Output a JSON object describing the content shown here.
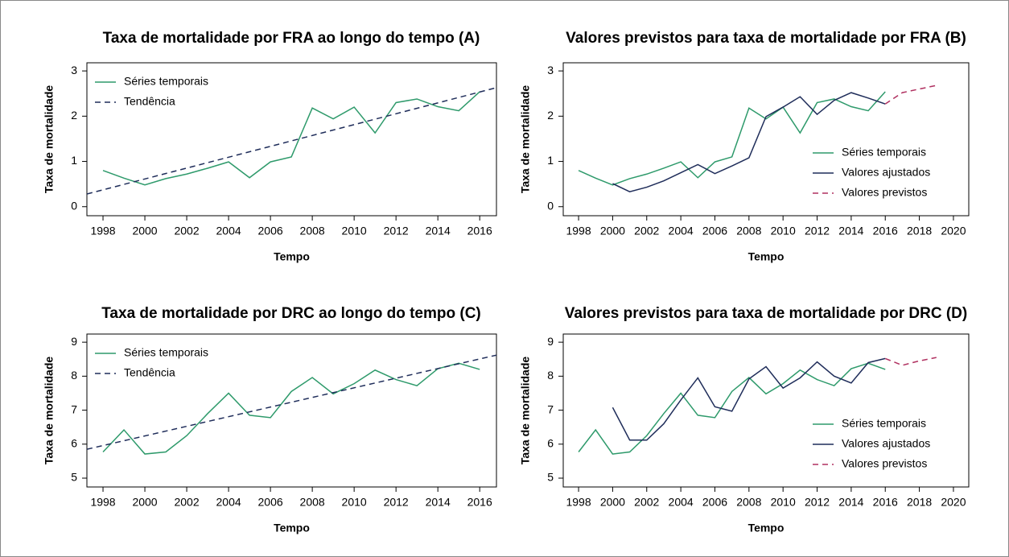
{
  "chart_data": [
    {
      "type": "line",
      "title": "Taxa de mortalidade por FRA ao longo do tempo (A)",
      "xlabel": "Tempo",
      "ylabel": "Taxa de mortalidade",
      "xlim": [
        1997.23,
        2016.8
      ],
      "xticks": [
        1998,
        2000,
        2002,
        2004,
        2006,
        2008,
        2010,
        2012,
        2014,
        2016
      ],
      "ylim": [
        -0.2,
        3.18
      ],
      "yticks": [
        0,
        1,
        2,
        3
      ],
      "legend": "top-left",
      "series": [
        {
          "name": "Séries temporais",
          "color": "#2e9a6b",
          "linestyle": "solid",
          "x": [
            1998,
            1999,
            2000,
            2001,
            2002,
            2003,
            2004,
            2005,
            2006,
            2007,
            2008,
            2009,
            2010,
            2011,
            2012,
            2013,
            2014,
            2015,
            2016
          ],
          "values": [
            0.8,
            0.63,
            0.48,
            0.62,
            0.72,
            0.85,
            0.99,
            0.64,
            0.99,
            1.1,
            2.18,
            1.94,
            2.2,
            1.63,
            2.3,
            2.38,
            2.21,
            2.12,
            2.54
          ]
        },
        {
          "name": "Tendência",
          "color": "#1f2d5a",
          "linestyle": "dashed",
          "x": [
            1997.23,
            2016.8
          ],
          "values": [
            0.28,
            2.63
          ]
        }
      ]
    },
    {
      "type": "line",
      "title": "Valores previstos para taxa de mortalidade por FRA (B)",
      "xlabel": "Tempo",
      "ylabel": "Taxa de mortalidade",
      "xlim": [
        1997.1,
        2020.9
      ],
      "xticks": [
        1998,
        2000,
        2002,
        2004,
        2006,
        2008,
        2010,
        2012,
        2014,
        2016,
        2018,
        2020
      ],
      "ylim": [
        -0.2,
        3.18
      ],
      "yticks": [
        0,
        1,
        2,
        3
      ],
      "legend": "right",
      "series": [
        {
          "name": "Séries temporais",
          "color": "#2e9a6b",
          "linestyle": "solid",
          "x": [
            1998,
            1999,
            2000,
            2001,
            2002,
            2003,
            2004,
            2005,
            2006,
            2007,
            2008,
            2009,
            2010,
            2011,
            2012,
            2013,
            2014,
            2015,
            2016
          ],
          "values": [
            0.8,
            0.63,
            0.48,
            0.62,
            0.72,
            0.85,
            0.99,
            0.64,
            0.99,
            1.1,
            2.18,
            1.94,
            2.2,
            1.63,
            2.3,
            2.38,
            2.21,
            2.12,
            2.54
          ]
        },
        {
          "name": "Valores ajustados",
          "color": "#1f2d5a",
          "linestyle": "solid",
          "x": [
            2000,
            2001,
            2002,
            2003,
            2004,
            2005,
            2006,
            2007,
            2008,
            2009,
            2010,
            2011,
            2012,
            2013,
            2014,
            2015,
            2016
          ],
          "values": [
            0.51,
            0.33,
            0.43,
            0.57,
            0.75,
            0.93,
            0.73,
            0.9,
            1.08,
            1.99,
            2.2,
            2.43,
            2.04,
            2.35,
            2.52,
            2.4,
            2.27
          ]
        },
        {
          "name": "Valores previstos",
          "color": "#b03060",
          "linestyle": "dashed",
          "x": [
            2016,
            2017,
            2018,
            2019
          ],
          "values": [
            2.27,
            2.52,
            2.6,
            2.68
          ]
        }
      ]
    },
    {
      "type": "line",
      "title": "Taxa de mortalidade por DRC ao longo do tempo (C)",
      "xlabel": "Tempo",
      "ylabel": "Taxa de mortalidade",
      "xlim": [
        1997.23,
        2016.8
      ],
      "xticks": [
        1998,
        2000,
        2002,
        2004,
        2006,
        2008,
        2010,
        2012,
        2014,
        2016
      ],
      "ylim": [
        4.74,
        9.24
      ],
      "yticks": [
        5,
        6,
        7,
        8,
        9
      ],
      "legend": "top-left",
      "series": [
        {
          "name": "Séries temporais",
          "color": "#2e9a6b",
          "linestyle": "solid",
          "x": [
            1998,
            1999,
            2000,
            2001,
            2002,
            2003,
            2004,
            2005,
            2006,
            2007,
            2008,
            2009,
            2010,
            2011,
            2012,
            2013,
            2014,
            2015,
            2016
          ],
          "values": [
            5.77,
            6.42,
            5.71,
            5.77,
            6.25,
            6.9,
            7.5,
            6.85,
            6.78,
            7.55,
            7.96,
            7.48,
            7.78,
            8.18,
            7.9,
            7.72,
            8.22,
            8.38,
            8.2
          ]
        },
        {
          "name": "Tendência",
          "color": "#1f2d5a",
          "linestyle": "dashed",
          "x": [
            1997.23,
            2016.8
          ],
          "values": [
            5.85,
            8.62
          ]
        }
      ]
    },
    {
      "type": "line",
      "title": "Valores previstos para taxa de mortalidade por DRC (D)",
      "xlabel": "Tempo",
      "ylabel": "Taxa de mortalidade",
      "xlim": [
        1997.1,
        2020.9
      ],
      "xticks": [
        1998,
        2000,
        2002,
        2004,
        2006,
        2008,
        2010,
        2012,
        2014,
        2016,
        2018,
        2020
      ],
      "ylim": [
        4.74,
        9.24
      ],
      "yticks": [
        5,
        6,
        7,
        8,
        9
      ],
      "legend": "right",
      "series": [
        {
          "name": "Séries temporais",
          "color": "#2e9a6b",
          "linestyle": "solid",
          "x": [
            1998,
            1999,
            2000,
            2001,
            2002,
            2003,
            2004,
            2005,
            2006,
            2007,
            2008,
            2009,
            2010,
            2011,
            2012,
            2013,
            2014,
            2015,
            2016
          ],
          "values": [
            5.77,
            6.42,
            5.71,
            5.77,
            6.25,
            6.9,
            7.5,
            6.85,
            6.78,
            7.55,
            7.96,
            7.48,
            7.78,
            8.18,
            7.9,
            7.72,
            8.22,
            8.38,
            8.2
          ]
        },
        {
          "name": "Valores ajustados",
          "color": "#1f2d5a",
          "linestyle": "solid",
          "x": [
            2000,
            2001,
            2002,
            2003,
            2004,
            2005,
            2006,
            2007,
            2008,
            2009,
            2010,
            2011,
            2012,
            2013,
            2014,
            2015,
            2016
          ],
          "values": [
            7.08,
            6.12,
            6.12,
            6.6,
            7.3,
            7.95,
            7.1,
            6.97,
            7.92,
            8.28,
            7.65,
            7.95,
            8.42,
            8.0,
            7.8,
            8.4,
            8.52
          ]
        },
        {
          "name": "Valores previstos",
          "color": "#b03060",
          "linestyle": "dashed",
          "x": [
            2016,
            2017,
            2018,
            2019
          ],
          "values": [
            8.52,
            8.32,
            8.45,
            8.55
          ]
        }
      ]
    }
  ]
}
